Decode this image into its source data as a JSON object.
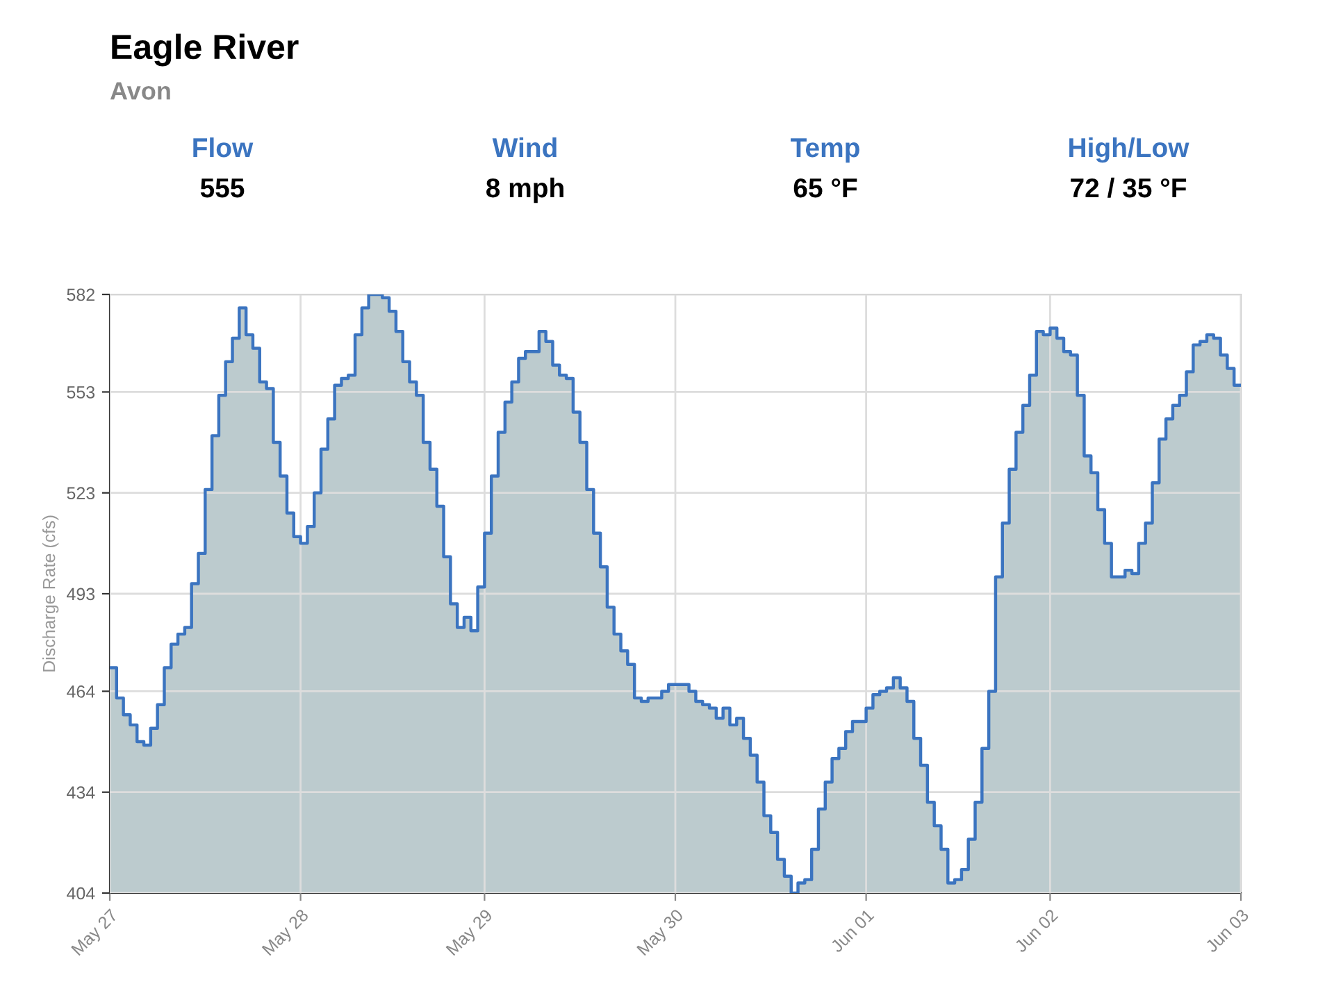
{
  "chart_data": {
    "type": "step",
    "title": "Eagle River",
    "subtitle": "Avon",
    "annotations": [
      "Flow",
      "555",
      "Wind",
      "8 mph",
      "Temp",
      "65 °F",
      "High/Low",
      "72 / 35 °F"
    ],
    "ylabel": "Discharge Rate (cfs)",
    "categories": [
      "May 27",
      null,
      null,
      null,
      null,
      null,
      null,
      null,
      null,
      null,
      null,
      null,
      null,
      null,
      null,
      null,
      null,
      null,
      null,
      null,
      null,
      null,
      null,
      null,
      null,
      null,
      null,
      null,
      "May 28",
      null,
      null,
      null,
      null,
      null,
      null,
      null,
      null,
      null,
      null,
      null,
      null,
      null,
      null,
      null,
      null,
      null,
      null,
      null,
      null,
      null,
      null,
      null,
      null,
      null,
      null,
      "May 29",
      null,
      null,
      null,
      null,
      null,
      null,
      null,
      null,
      null,
      null,
      null,
      null,
      null,
      null,
      null,
      null,
      null,
      null,
      null,
      null,
      null,
      null,
      null,
      null,
      null,
      null,
      null,
      "May 30",
      null,
      null,
      null,
      null,
      null,
      null,
      null,
      null,
      null,
      null,
      null,
      null,
      null,
      null,
      null,
      null,
      null,
      null,
      null,
      null,
      null,
      null,
      null,
      null,
      null,
      null,
      null,
      "Jun 01",
      null,
      null,
      null,
      null,
      null,
      null,
      null,
      null,
      null,
      null,
      null,
      null,
      null,
      null,
      null,
      null,
      null,
      null,
      null,
      null,
      null,
      null,
      null,
      null,
      null,
      null,
      "Jun 02",
      null,
      null,
      null,
      null,
      null,
      null,
      null,
      null,
      null,
      null,
      null,
      null,
      null,
      null,
      null,
      null,
      null,
      null,
      null,
      null,
      null,
      null,
      null,
      null,
      null,
      null,
      null,
      "Jun 03"
    ],
    "ylim": [
      404,
      582
    ],
    "yticks": [
      404,
      434,
      464,
      493,
      523,
      553,
      582
    ],
    "grid": true,
    "series": [
      {
        "color": "#3b74c0",
        "values": [
          471,
          462,
          457,
          454,
          449,
          448,
          453,
          460,
          471,
          478,
          481,
          483,
          496,
          505,
          524,
          540,
          552,
          562,
          569,
          578,
          570,
          566,
          556,
          554,
          538,
          528,
          517,
          510,
          508,
          513,
          523,
          536,
          545,
          555,
          557,
          558,
          570,
          578,
          582,
          582,
          581,
          577,
          571,
          562,
          556,
          552,
          538,
          530,
          519,
          504,
          490,
          483,
          486,
          482,
          495,
          511,
          528,
          541,
          550,
          556,
          563,
          565,
          565,
          571,
          568,
          561,
          558,
          557,
          547,
          538,
          524,
          511,
          501,
          489,
          481,
          476,
          472,
          462,
          461,
          462,
          462,
          464,
          466,
          466,
          466,
          464,
          461,
          460,
          459,
          456,
          459,
          454,
          456,
          450,
          445,
          437,
          427,
          422,
          414,
          409,
          404,
          407,
          408,
          417,
          429,
          437,
          444,
          447,
          452,
          455,
          455,
          459,
          463,
          464,
          465,
          468,
          465,
          461,
          450,
          442,
          431,
          424,
          417,
          407,
          408,
          411,
          420,
          431,
          447,
          464,
          498,
          514,
          530,
          541,
          549,
          558,
          571,
          570,
          572,
          569,
          565,
          564,
          552,
          534,
          529,
          518,
          508,
          498,
          498,
          500,
          499,
          508,
          514,
          526,
          539,
          545,
          549,
          552,
          559,
          567,
          568,
          570,
          569,
          564,
          560,
          555,
          555
        ]
      }
    ]
  }
}
